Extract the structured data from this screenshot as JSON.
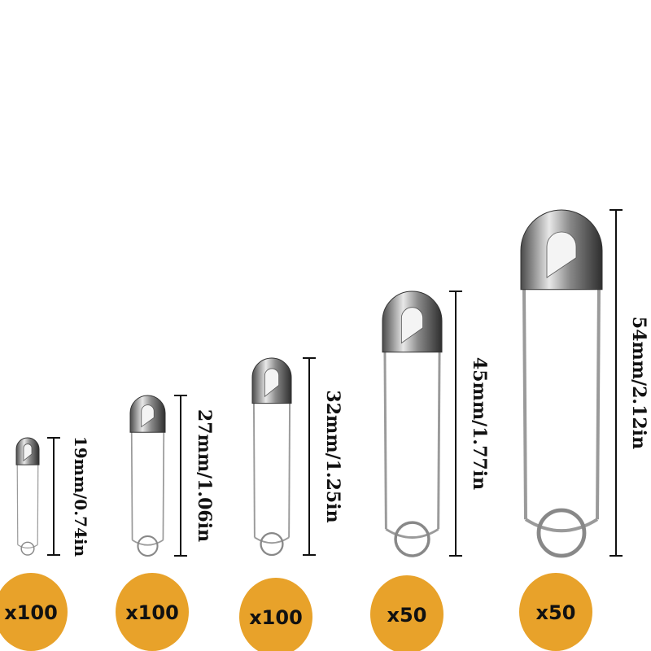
{
  "badge_color": "#E8A22A",
  "pins": [
    {
      "size_label": "19mm/0.74in",
      "quantity": "x100"
    },
    {
      "size_label": "27mm/1.06in",
      "quantity": "x100"
    },
    {
      "size_label": "32mm/1.25in",
      "quantity": "x100"
    },
    {
      "size_label": "45mm/1.77in",
      "quantity": "x50"
    },
    {
      "size_label": "54mm/2.12in",
      "quantity": "x50"
    }
  ]
}
